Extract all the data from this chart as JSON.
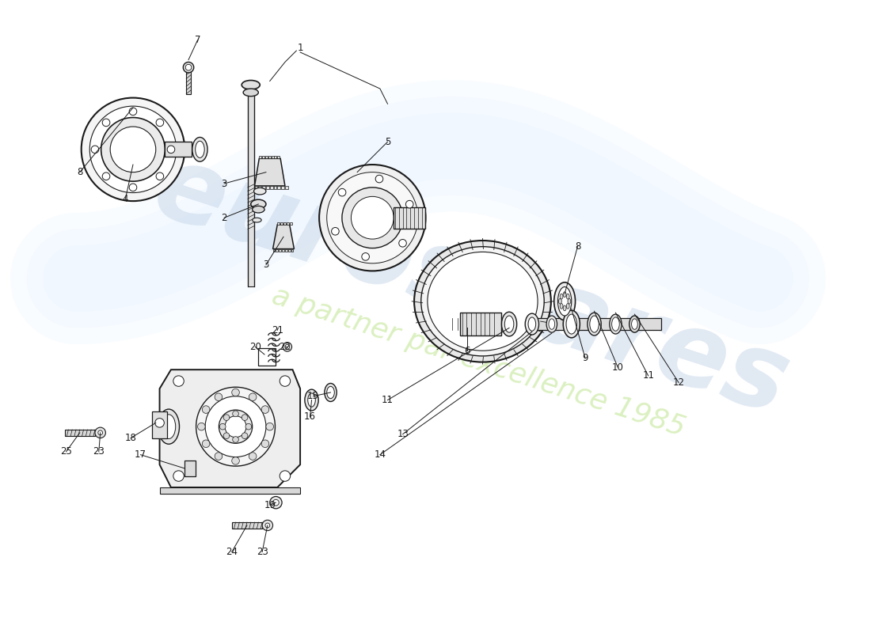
{
  "background_color": "#ffffff",
  "line_color": "#1a1a1a",
  "watermark1": "eurospares",
  "watermark2": "a partner par excellence 1985",
  "wm_color1": "#c5d8ea",
  "wm_color2": "#d0e8b0",
  "fig_width": 11.0,
  "fig_height": 8.0,
  "dpi": 100
}
